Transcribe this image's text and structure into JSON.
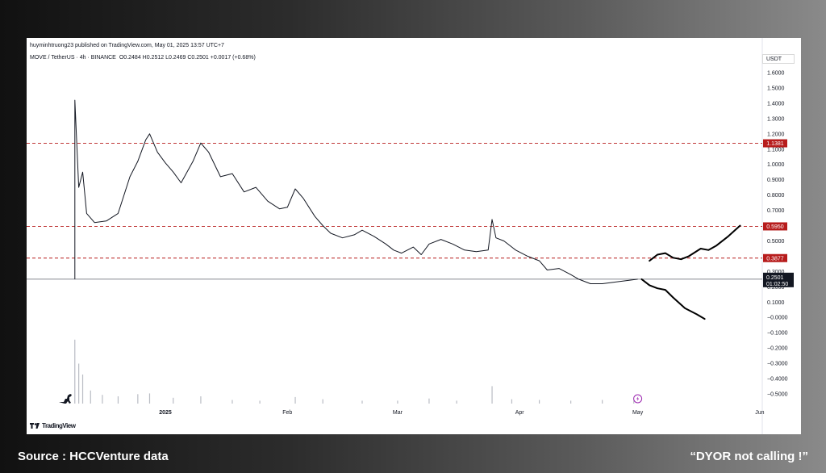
{
  "header": {
    "publisher": "huyminhtruong23 published on TradingView.com, May 01, 2025 13:57 UTC+7",
    "pair": "MOVE / TetherUS · 4h · BINANCE",
    "ohlc": "O0.2484 H0.2512 L0.2469 C0.2501 +0.0017 (+0.68%)"
  },
  "axis": {
    "currency": "USDT"
  },
  "brand": {
    "label": "TradingView"
  },
  "footer": {
    "source": "Source : HCCVenture data",
    "note": "“DYOR  not calling !”"
  },
  "chart_data": {
    "type": "line",
    "title": "",
    "xlabel": "",
    "ylabel": "",
    "ylim": [
      -0.55,
      1.65
    ],
    "y_ticks": [
      1.6,
      1.5,
      1.4,
      1.3,
      1.2,
      1.1,
      1.0,
      0.9,
      0.8,
      0.7,
      0.6,
      0.5,
      0.4,
      0.3,
      0.2,
      0.1,
      0.0,
      -0.1,
      -0.2,
      -0.3,
      -0.4,
      -0.5
    ],
    "y_tick_labels": [
      "1.6000",
      "1.5000",
      "1.4000",
      "1.3000",
      "1.2000",
      "1.1000",
      "1.0000",
      "0.9000",
      "0.8000",
      "0.7000",
      "0.6000",
      "0.5000",
      "0.4000",
      "0.3000",
      "0.2000",
      "0.1000",
      "−0.0000",
      "−0.1000",
      "−0.2000",
      "−0.3000",
      "−0.4000",
      "−0.5000"
    ],
    "x_tick_labels": [
      {
        "label": "2025",
        "date": "2025-01-01"
      },
      {
        "label": "Feb",
        "date": "2025-02-01"
      },
      {
        "label": "Mar",
        "date": "2025-03-01"
      },
      {
        "label": "Apr",
        "date": "2025-04-01"
      },
      {
        "label": "May",
        "date": "2025-05-01"
      },
      {
        "label": "Jun",
        "date": "2025-06-01"
      }
    ],
    "levels": [
      {
        "value": 1.1381,
        "label": "1.1381",
        "color": "#b71c1c"
      },
      {
        "value": 0.595,
        "label": "0.5950",
        "color": "#b71c1c"
      },
      {
        "value": 0.3877,
        "label": "0.3877",
        "color": "#b71c1c"
      }
    ],
    "current_price": {
      "value": 0.2501,
      "label": "0.2501",
      "countdown": "01:02:50"
    },
    "price_series": {
      "name": "",
      "points": [
        [
          "2024-12-09",
          0.25
        ],
        [
          "2024-12-09",
          1.42
        ],
        [
          "2024-12-10",
          0.85
        ],
        [
          "2024-12-11",
          0.95
        ],
        [
          "2024-12-12",
          0.68
        ],
        [
          "2024-12-14",
          0.62
        ],
        [
          "2024-12-17",
          0.63
        ],
        [
          "2024-12-20",
          0.68
        ],
        [
          "2024-12-23",
          0.92
        ],
        [
          "2024-12-25",
          1.02
        ],
        [
          "2024-12-27",
          1.16
        ],
        [
          "2024-12-28",
          1.2
        ],
        [
          "2024-12-30",
          1.08
        ],
        [
          "2025-01-01",
          1.01
        ],
        [
          "2025-01-03",
          0.95
        ],
        [
          "2025-01-05",
          0.88
        ],
        [
          "2025-01-08",
          1.02
        ],
        [
          "2025-01-10",
          1.14
        ],
        [
          "2025-01-12",
          1.08
        ],
        [
          "2025-01-15",
          0.92
        ],
        [
          "2025-01-18",
          0.94
        ],
        [
          "2025-01-21",
          0.82
        ],
        [
          "2025-01-24",
          0.85
        ],
        [
          "2025-01-27",
          0.76
        ],
        [
          "2025-01-30",
          0.71
        ],
        [
          "2025-02-01",
          0.72
        ],
        [
          "2025-02-03",
          0.84
        ],
        [
          "2025-02-05",
          0.78
        ],
        [
          "2025-02-08",
          0.66
        ],
        [
          "2025-02-10",
          0.6
        ],
        [
          "2025-02-12",
          0.55
        ],
        [
          "2025-02-15",
          0.52
        ],
        [
          "2025-02-18",
          0.54
        ],
        [
          "2025-02-20",
          0.57
        ],
        [
          "2025-02-23",
          0.53
        ],
        [
          "2025-02-26",
          0.48
        ],
        [
          "2025-02-28",
          0.44
        ],
        [
          "2025-03-02",
          0.42
        ],
        [
          "2025-03-05",
          0.46
        ],
        [
          "2025-03-07",
          0.41
        ],
        [
          "2025-03-09",
          0.48
        ],
        [
          "2025-03-12",
          0.51
        ],
        [
          "2025-03-15",
          0.48
        ],
        [
          "2025-03-18",
          0.44
        ],
        [
          "2025-03-21",
          0.43
        ],
        [
          "2025-03-24",
          0.44
        ],
        [
          "2025-03-25",
          0.64
        ],
        [
          "2025-03-26",
          0.52
        ],
        [
          "2025-03-28",
          0.5
        ],
        [
          "2025-03-31",
          0.44
        ],
        [
          "2025-04-03",
          0.4
        ],
        [
          "2025-04-06",
          0.37
        ],
        [
          "2025-04-08",
          0.31
        ],
        [
          "2025-04-11",
          0.32
        ],
        [
          "2025-04-14",
          0.28
        ],
        [
          "2025-04-16",
          0.25
        ],
        [
          "2025-04-19",
          0.22
        ],
        [
          "2025-04-22",
          0.22
        ],
        [
          "2025-04-25",
          0.23
        ],
        [
          "2025-04-28",
          0.24
        ],
        [
          "2025-05-01",
          0.25
        ]
      ]
    },
    "volume": {
      "points": [
        [
          "2024-12-09",
          0.88
        ],
        [
          "2024-12-10",
          0.55
        ],
        [
          "2024-12-11",
          0.4
        ],
        [
          "2024-12-13",
          0.18
        ],
        [
          "2024-12-16",
          0.12
        ],
        [
          "2024-12-20",
          0.1
        ],
        [
          "2024-12-25",
          0.13
        ],
        [
          "2024-12-28",
          0.14
        ],
        [
          "2025-01-03",
          0.08
        ],
        [
          "2025-01-10",
          0.1
        ],
        [
          "2025-01-18",
          0.05
        ],
        [
          "2025-01-25",
          0.04
        ],
        [
          "2025-02-03",
          0.09
        ],
        [
          "2025-02-10",
          0.06
        ],
        [
          "2025-02-20",
          0.04
        ],
        [
          "2025-03-01",
          0.04
        ],
        [
          "2025-03-09",
          0.07
        ],
        [
          "2025-03-16",
          0.04
        ],
        [
          "2025-03-25",
          0.24
        ],
        [
          "2025-03-30",
          0.06
        ],
        [
          "2025-04-06",
          0.05
        ],
        [
          "2025-04-14",
          0.04
        ],
        [
          "2025-04-22",
          0.05
        ],
        [
          "2025-04-30",
          0.04
        ]
      ]
    },
    "projection_up": [
      [
        "2025-05-04",
        0.37
      ],
      [
        "2025-05-06",
        0.41
      ],
      [
        "2025-05-08",
        0.42
      ],
      [
        "2025-05-10",
        0.39
      ],
      [
        "2025-05-12",
        0.38
      ],
      [
        "2025-05-14",
        0.4
      ],
      [
        "2025-05-17",
        0.45
      ],
      [
        "2025-05-19",
        0.44
      ],
      [
        "2025-05-21",
        0.47
      ],
      [
        "2025-05-24",
        0.53
      ],
      [
        "2025-05-27",
        0.6
      ]
    ],
    "projection_down": [
      [
        "2025-05-02",
        0.25
      ],
      [
        "2025-05-04",
        0.21
      ],
      [
        "2025-05-06",
        0.19
      ],
      [
        "2025-05-08",
        0.18
      ],
      [
        "2025-05-10",
        0.13
      ],
      [
        "2025-05-13",
        0.06
      ],
      [
        "2025-05-16",
        0.02
      ],
      [
        "2025-05-18",
        -0.01
      ]
    ]
  }
}
